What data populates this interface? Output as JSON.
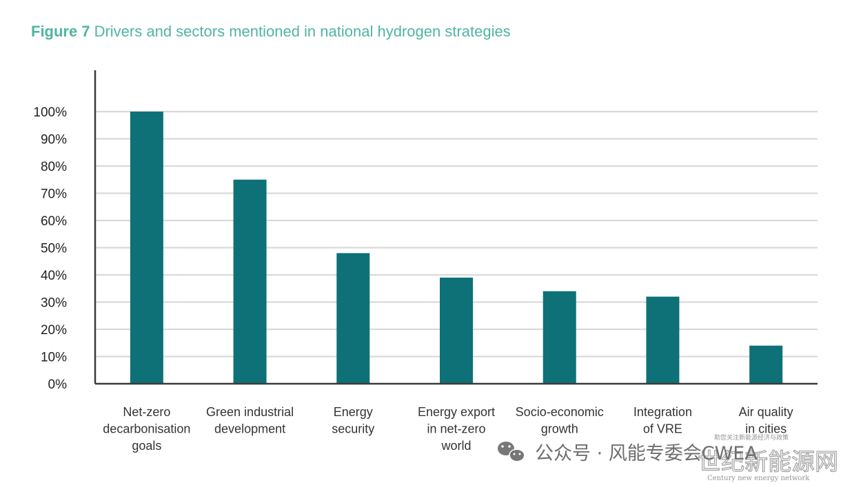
{
  "chart_data": {
    "type": "bar",
    "title_label": "Figure 7",
    "title": "Drivers and sectors mentioned in national hydrogen strategies",
    "xlabel": "",
    "ylabel": "",
    "categories": [
      [
        "Net-zero",
        "decarbonisation",
        "goals"
      ],
      [
        "Green industrial",
        "development"
      ],
      [
        "Energy",
        "security"
      ],
      [
        "Energy export",
        "in net-zero",
        "world"
      ],
      [
        "Socio-economic",
        "growth"
      ],
      [
        "Integration",
        "of VRE"
      ],
      [
        "Air quality",
        "in cities"
      ]
    ],
    "values": [
      100,
      75,
      48,
      39,
      34,
      32,
      14
    ],
    "ylim": [
      0,
      100
    ],
    "yticks": [
      0,
      10,
      20,
      30,
      40,
      50,
      60,
      70,
      80,
      90,
      100
    ],
    "ytick_format": "percent",
    "grid": true,
    "legend": "none",
    "bar_color": "#0e7177",
    "grid_color": "#d9d9d9",
    "axis_color": "#3a3a3a",
    "title_color": "#4fb5a3"
  },
  "watermark": {
    "icon": "wechat-icon",
    "text": "公众号 · 风能专委会CWEA",
    "big_text": "世纪新能源网",
    "small_text": "助您关注新能源经济与政策",
    "english_text": "Century new energy network"
  }
}
